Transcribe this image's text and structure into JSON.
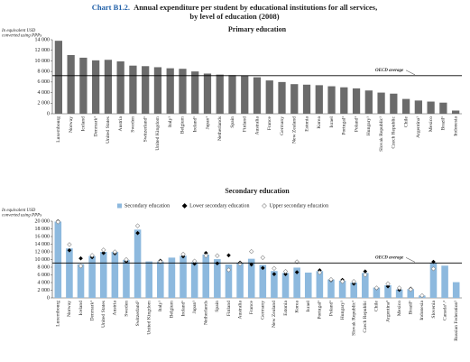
{
  "figure_label": "Chart B1.2.",
  "title_lines": [
    "Annual expenditure per student by educational institutions for all services,",
    "by level of education (2008)"
  ],
  "chart_data": [
    {
      "type": "bar",
      "title": "Primary education",
      "y_label": [
        "In equivalent USD",
        "converted using PPPs"
      ],
      "categories": [
        "Luxembourg",
        "Norway",
        "Iceland",
        "Denmark¹",
        "United States",
        "Austria",
        "Sweden",
        "Switzerland¹",
        "United Kingdom",
        "Italy¹",
        "Belgium",
        "Ireland¹",
        "Japan¹",
        "Netherlands",
        "Spain",
        "Finland",
        "Australia",
        "France",
        "Germany",
        "New Zealand",
        "Estonia",
        "Korea",
        "Israel",
        "Portugal¹",
        "Poland¹",
        "Hungary¹",
        "Slovak Republic¹",
        "Czech Republic",
        "Chile",
        "Argentina¹",
        "Mexico",
        "Brazil¹",
        "Indonesia"
      ],
      "values": [
        13800,
        11100,
        10600,
        10100,
        10200,
        9900,
        9100,
        9000,
        8800,
        8600,
        8500,
        8000,
        7600,
        7400,
        7300,
        7200,
        6900,
        6300,
        6000,
        5600,
        5500,
        5400,
        5200,
        5000,
        4800,
        4400,
        4000,
        3800,
        2800,
        2500,
        2300,
        2100,
        600
      ],
      "color": "#6b6b6b",
      "ylim": [
        0,
        14000
      ],
      "yticks": [
        0,
        {
          "value": 2000,
          "label": "2 000"
        },
        {
          "value": 4000,
          "label": "4 000"
        },
        {
          "value": 6000,
          "label": "6 000"
        },
        {
          "value": 8000,
          "label": "8 000"
        },
        {
          "value": 10000,
          "label": "10 000"
        },
        {
          "value": 12000,
          "label": "12 000"
        },
        {
          "value": 14000,
          "label": "14 000"
        }
      ],
      "reference_line": {
        "label": "OECD average",
        "value": 7200
      }
    },
    {
      "type": "bar",
      "title": "Secondary education",
      "y_label": [
        "In equivalent USD",
        "converted using PPPs"
      ],
      "categories": [
        "Luxembourg",
        "Norway",
        "Iceland",
        "Denmark¹",
        "United States",
        "Austria",
        "Sweden",
        "Switzerland²",
        "United Kingdom",
        "Italy¹",
        "Belgium",
        "Ireland¹",
        "Japan¹",
        "Netherlands",
        "Spain",
        "Finland",
        "Australia",
        "France",
        "Germany",
        "New Zealand",
        "Estonia",
        "Korea",
        "Israel",
        "Portugal¹",
        "Poland¹",
        "Hungary¹",
        "Slovak Republic¹",
        "Czech Republic",
        "Chile",
        "Argentina³",
        "Mexico",
        "Brazil¹",
        "Indonesia",
        "Slovenia",
        "Canada¹˒²",
        "Russian Federation²"
      ],
      "series": [
        {
          "name": "Secondary education",
          "style": "bar",
          "color": "#8db9de",
          "values": [
            19900,
            12900,
            8800,
            10900,
            12000,
            12000,
            9900,
            17800,
            9500,
            9500,
            10500,
            11000,
            9300,
            11300,
            10100,
            8700,
            9100,
            10200,
            8600,
            7000,
            6500,
            7900,
            6600,
            7000,
            4800,
            4500,
            4000,
            6500,
            2700,
            3300,
            2200,
            2300,
            600,
            9100,
            8400,
            4100
          ]
        },
        {
          "name": "Lower secondary education",
          "style": "diamond-filled",
          "color": "#000000",
          "values": [
            20000,
            12400,
            10300,
            10600,
            11700,
            11600,
            9500,
            16900,
            null,
            9700,
            null,
            10800,
            8900,
            11700,
            9000,
            11100,
            9200,
            8700,
            7800,
            6200,
            6200,
            6700,
            null,
            7200,
            4600,
            4700,
            3700,
            6900,
            2500,
            3000,
            2100,
            2400,
            600,
            9400,
            null,
            null
          ]
        },
        {
          "name": "Upper secondary education",
          "style": "diamond-open",
          "color": "#8c8c8c",
          "values": [
            19800,
            13900,
            8300,
            11100,
            12500,
            12000,
            10000,
            18800,
            null,
            9400,
            null,
            11400,
            9600,
            11000,
            11000,
            7300,
            8900,
            12100,
            10500,
            7700,
            6900,
            9400,
            null,
            6600,
            4800,
            4300,
            4300,
            6000,
            2600,
            3700,
            2600,
            2200,
            600,
            7600,
            null,
            null
          ]
        }
      ],
      "ylim": [
        0,
        20000
      ],
      "yticks": [
        0,
        {
          "value": 2000,
          "label": "2 000"
        },
        {
          "value": 4000,
          "label": "4 000"
        },
        {
          "value": 6000,
          "label": "6 000"
        },
        {
          "value": 8000,
          "label": "8 000"
        },
        {
          "value": 10000,
          "label": "10 000"
        },
        {
          "value": 12000,
          "label": "12 000"
        },
        {
          "value": 14000,
          "label": "14 000"
        },
        {
          "value": 16000,
          "label": "16 000"
        },
        {
          "value": 18000,
          "label": "18 000"
        },
        {
          "value": 20000,
          "label": "20 000"
        }
      ],
      "reference_line": {
        "label": "OECD average",
        "value": 9100
      }
    }
  ]
}
